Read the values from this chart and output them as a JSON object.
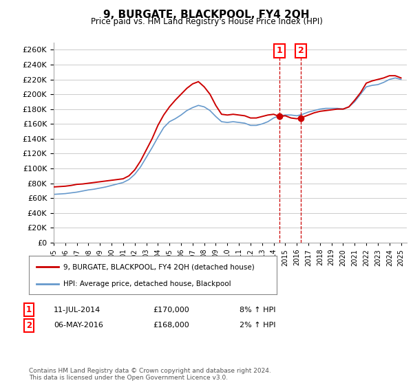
{
  "title": "9, BURGATE, BLACKPOOL, FY4 2QH",
  "subtitle": "Price paid vs. HM Land Registry's House Price Index (HPI)",
  "ylabel_ticks": [
    0,
    20000,
    40000,
    60000,
    80000,
    100000,
    120000,
    140000,
    160000,
    180000,
    200000,
    220000,
    240000,
    260000
  ],
  "ylim": [
    0,
    270000
  ],
  "xlim": [
    1995.0,
    2025.5
  ],
  "line1_color": "#cc0000",
  "line2_color": "#6699cc",
  "marker1_x": 2014.52,
  "marker2_x": 2016.35,
  "marker1_label": "1",
  "marker2_label": "2",
  "marker1_y": 170000,
  "marker2_y": 168000,
  "annotation1": [
    "1",
    "11-JUL-2014",
    "£170,000",
    "8% ↑ HPI"
  ],
  "annotation2": [
    "2",
    "06-MAY-2016",
    "£168,000",
    "2% ↑ HPI"
  ],
  "legend_line1": "9, BURGATE, BLACKPOOL, FY4 2QH (detached house)",
  "legend_line2": "HPI: Average price, detached house, Blackpool",
  "copyright": "Contains HM Land Registry data © Crown copyright and database right 2024.\nThis data is licensed under the Open Government Licence v3.0.",
  "background_color": "#ffffff",
  "grid_color": "#cccccc",
  "hpi_years": [
    1995,
    1995.5,
    1996,
    1996.5,
    1997,
    1997.5,
    1998,
    1998.5,
    1999,
    1999.5,
    2000,
    2000.5,
    2001,
    2001.5,
    2002,
    2002.5,
    2003,
    2003.5,
    2004,
    2004.5,
    2005,
    2005.5,
    2006,
    2006.5,
    2007,
    2007.5,
    2008,
    2008.5,
    2009,
    2009.5,
    2010,
    2010.5,
    2011,
    2011.5,
    2012,
    2012.5,
    2013,
    2013.5,
    2014,
    2014.5,
    2015,
    2015.5,
    2016,
    2016.5,
    2017,
    2017.5,
    2018,
    2018.5,
    2019,
    2019.5,
    2020,
    2020.5,
    2021,
    2021.5,
    2022,
    2022.5,
    2023,
    2023.5,
    2024,
    2024.5,
    2025
  ],
  "hpi_values": [
    65000,
    65500,
    66000,
    67000,
    68000,
    69500,
    71000,
    72000,
    73500,
    75000,
    77000,
    79000,
    81000,
    85000,
    92000,
    102000,
    115000,
    128000,
    142000,
    155000,
    163000,
    167000,
    172000,
    178000,
    182000,
    185000,
    183000,
    178000,
    170000,
    163000,
    162000,
    163000,
    162000,
    161000,
    158000,
    158000,
    160000,
    163000,
    168000,
    171000,
    172000,
    172000,
    171000,
    173000,
    176000,
    178000,
    180000,
    181000,
    181000,
    181000,
    180000,
    183000,
    190000,
    200000,
    210000,
    212000,
    213000,
    216000,
    220000,
    222000,
    220000
  ],
  "price_years": [
    1995,
    1995.5,
    1996,
    1996.5,
    1997,
    1997.5,
    1998,
    1998.5,
    1999,
    1999.5,
    2000,
    2000.5,
    2001,
    2001.5,
    2002,
    2002.5,
    2003,
    2003.5,
    2004,
    2004.5,
    2005,
    2005.5,
    2006,
    2006.5,
    2007,
    2007.5,
    2008,
    2008.5,
    2009,
    2009.5,
    2010,
    2010.5,
    2011,
    2011.5,
    2012,
    2012.5,
    2013,
    2013.5,
    2014,
    2014.5,
    2015,
    2015.5,
    2016,
    2016.5,
    2017,
    2017.5,
    2018,
    2018.5,
    2019,
    2019.5,
    2020,
    2020.5,
    2021,
    2021.5,
    2022,
    2022.5,
    2023,
    2023.5,
    2024,
    2024.5,
    2025
  ],
  "price_values": [
    75000,
    75500,
    76000,
    77000,
    78500,
    79000,
    80000,
    81000,
    82000,
    83000,
    84000,
    85000,
    86000,
    90000,
    98000,
    110000,
    125000,
    140000,
    158000,
    172000,
    183000,
    192000,
    200000,
    208000,
    214000,
    217000,
    210000,
    200000,
    185000,
    173000,
    172000,
    173000,
    172000,
    171000,
    168000,
    168000,
    170000,
    172000,
    173000,
    170000,
    171000,
    168000,
    167000,
    169000,
    172000,
    175000,
    177000,
    178000,
    179000,
    180000,
    180000,
    183000,
    192000,
    202000,
    215000,
    218000,
    220000,
    222000,
    225000,
    225000,
    222000
  ]
}
